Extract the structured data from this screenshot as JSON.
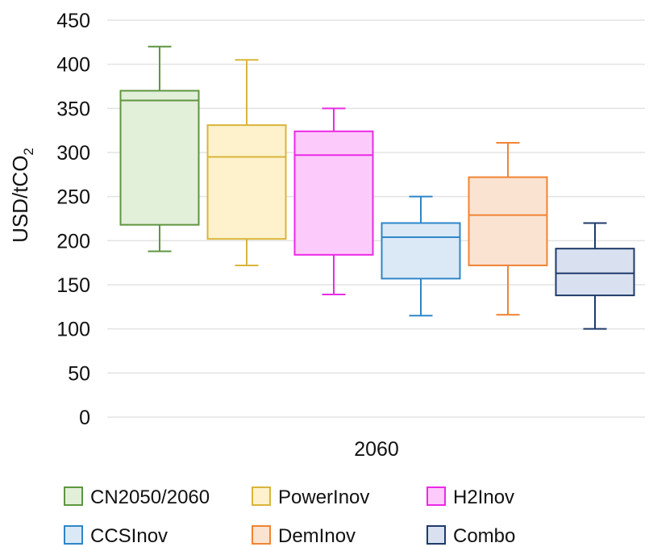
{
  "chart_data": {
    "type": "box",
    "title": "",
    "ylabel": "USD/tCO",
    "ylabel_subscript": "2",
    "xlabel": "",
    "category": "2060",
    "ylim": [
      0,
      450
    ],
    "y_ticks": [
      "0",
      "50",
      "100",
      "150",
      "200",
      "250",
      "300",
      "350",
      "400",
      "450"
    ],
    "grid": true,
    "legend_position": "bottom",
    "series": [
      {
        "name": "CN2050/2060",
        "color": "#5f9641",
        "fill": "#e2efd9",
        "min": 188,
        "q1": 218,
        "median": 359,
        "q3": 370,
        "max": 420
      },
      {
        "name": "PowerInov",
        "color": "#d9b53a",
        "fill": "#fdf2cc",
        "min": 172,
        "q1": 202,
        "median": 295,
        "q3": 331,
        "max": 405
      },
      {
        "name": "H2Inov",
        "color": "#ea2ae6",
        "fill": "#fdcbfb",
        "min": 139,
        "q1": 184,
        "median": 297,
        "q3": 324,
        "max": 350
      },
      {
        "name": "CCSInov",
        "color": "#2e86c8",
        "fill": "#dbe9f6",
        "min": 115,
        "q1": 157,
        "median": 204,
        "q3": 220,
        "max": 250
      },
      {
        "name": "DemInov",
        "color": "#f08434",
        "fill": "#fbe3d2",
        "min": 116,
        "q1": 172,
        "median": 229,
        "q3": 272,
        "max": 311
      },
      {
        "name": "Combo",
        "color": "#1f3a6a",
        "fill": "#d9e1f1",
        "min": 100,
        "q1": 138,
        "median": 163,
        "q3": 191,
        "max": 220
      }
    ]
  }
}
